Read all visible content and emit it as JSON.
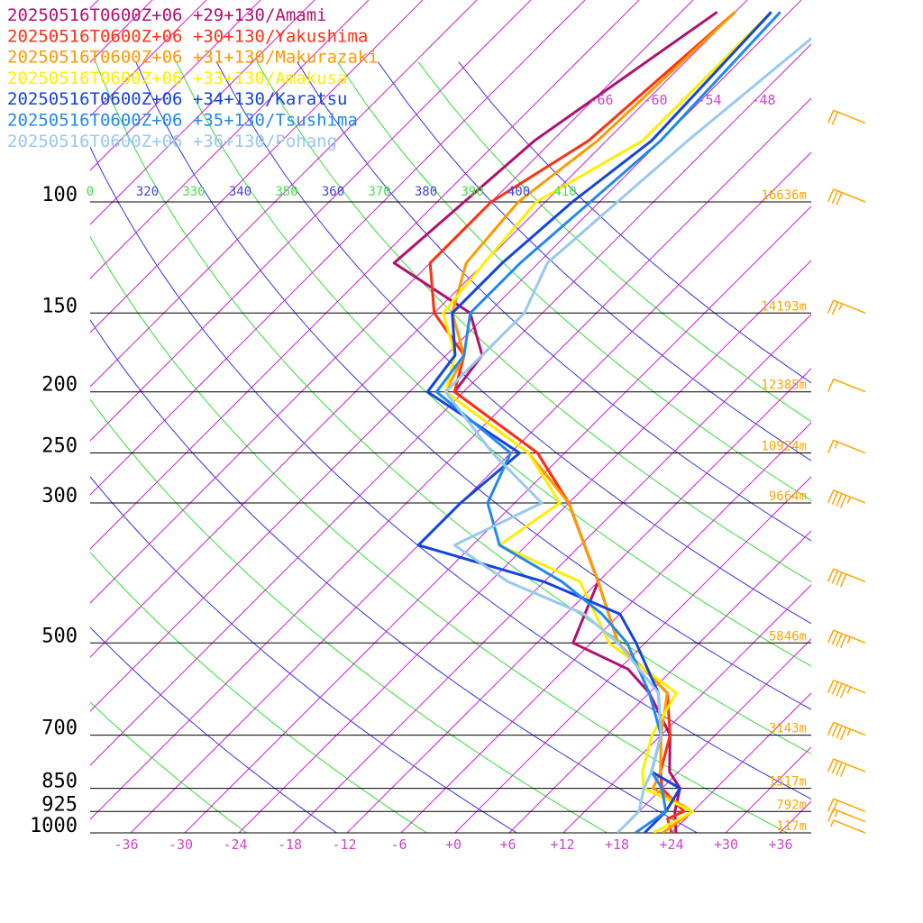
{
  "chart_data": {
    "type": "line",
    "subtype": "skew-T sounding",
    "title": "",
    "xlabel": "",
    "ylabel": "",
    "pressure_levels": [
      100,
      150,
      200,
      250,
      300,
      500,
      700,
      850,
      925,
      1000
    ],
    "geopotential_heights": [
      "16636m",
      "14193m",
      "12385m",
      "10924m",
      "9664m",
      "5846m",
      "3143m",
      "1517m",
      "792m",
      "117m"
    ],
    "temperature_ticks": [
      "-36",
      "-30",
      "-24",
      "-18",
      "-12",
      "-6",
      "+0",
      "+6",
      "+12",
      "+18",
      "+24",
      "+30",
      "+36"
    ],
    "upper_isotherm_labels": [
      "-66",
      "-60",
      "-54",
      "-48"
    ],
    "theta_labels": [
      {
        "text": "0",
        "color": "#44dd44"
      },
      {
        "text": "320",
        "color": "#4444dd"
      },
      {
        "text": "330",
        "color": "#44dd44"
      },
      {
        "text": "340",
        "color": "#4444dd"
      },
      {
        "text": "350",
        "color": "#44dd44"
      },
      {
        "text": "360",
        "color": "#4444dd"
      },
      {
        "text": "370",
        "color": "#44dd44"
      },
      {
        "text": "380",
        "color": "#4444dd"
      },
      {
        "text": "390",
        "color": "#44dd44"
      },
      {
        "text": "400",
        "color": "#4444dd"
      },
      {
        "text": "410",
        "color": "#44dd44"
      }
    ],
    "colors": {
      "isotherm": "#cc22cc",
      "dry_adiabat_blue": "#3333dd",
      "dry_adiabat_green": "#33dd33",
      "isobar": "#000000",
      "wind_barb": "#ffa500"
    },
    "series": [
      {
        "name": "20250516T0600Z+06 +29+130/Amami",
        "color": "#b01070",
        "points": [
          [
            1000,
            24.5
          ],
          [
            925,
            22
          ],
          [
            850,
            20
          ],
          [
            800,
            17
          ],
          [
            700,
            13
          ],
          [
            600,
            6
          ],
          [
            550,
            1
          ],
          [
            500,
            -8
          ],
          [
            400,
            -12
          ],
          [
            300,
            -24
          ],
          [
            250,
            -33
          ],
          [
            200,
            -49
          ],
          [
            175,
            -50
          ],
          [
            150,
            -56
          ],
          [
            125,
            -70
          ],
          [
            100,
            -69
          ],
          [
            80,
            -68
          ],
          [
            50,
            -62
          ]
        ]
      },
      {
        "name": "20250516T0600Z+06 +30+130/Yakushima",
        "color": "#ff3010",
        "points": [
          [
            1000,
            24
          ],
          [
            950,
            22
          ],
          [
            925,
            23
          ],
          [
            850,
            18
          ],
          [
            800,
            16
          ],
          [
            700,
            13
          ],
          [
            600,
            8
          ],
          [
            500,
            -3
          ],
          [
            400,
            -12
          ],
          [
            300,
            -24
          ],
          [
            250,
            -33
          ],
          [
            200,
            -49
          ],
          [
            175,
            -52
          ],
          [
            150,
            -60
          ],
          [
            125,
            -66
          ],
          [
            100,
            -66
          ],
          [
            80,
            -62
          ],
          [
            50,
            -60
          ]
        ]
      },
      {
        "name": "20250516T0600Z+06 +31+130/Makurazaki",
        "color": "#ff9900",
        "points": [
          [
            1000,
            23
          ],
          [
            925,
            24
          ],
          [
            850,
            17
          ],
          [
            800,
            16
          ],
          [
            700,
            12
          ],
          [
            600,
            8
          ],
          [
            500,
            -3
          ],
          [
            400,
            -12
          ],
          [
            300,
            -24
          ],
          [
            250,
            -34
          ],
          [
            200,
            -50
          ],
          [
            175,
            -52
          ],
          [
            150,
            -58
          ],
          [
            125,
            -62
          ],
          [
            100,
            -63
          ],
          [
            80,
            -61
          ],
          [
            50,
            -60
          ]
        ]
      },
      {
        "name": "20250516T0600Z+06 +33+130/Amakusa",
        "color": "#ffee00",
        "points": [
          [
            1000,
            22
          ],
          [
            925,
            24
          ],
          [
            850,
            16
          ],
          [
            800,
            14
          ],
          [
            700,
            11
          ],
          [
            600,
            9
          ],
          [
            500,
            -4
          ],
          [
            400,
            -14
          ],
          [
            350,
            -27
          ],
          [
            300,
            -25
          ],
          [
            250,
            -34
          ],
          [
            200,
            -50
          ],
          [
            175,
            -53
          ],
          [
            150,
            -59
          ],
          [
            125,
            -60
          ],
          [
            100,
            -61
          ],
          [
            80,
            -56
          ],
          [
            50,
            -56
          ]
        ]
      },
      {
        "name": "20250516T0600Z+06 +34+130/Karatsu",
        "color": "#1444dd",
        "points": [
          [
            1000,
            21
          ],
          [
            925,
            21
          ],
          [
            850,
            20
          ],
          [
            800,
            15
          ],
          [
            700,
            12
          ],
          [
            600,
            7
          ],
          [
            500,
            -1
          ],
          [
            450,
            -6
          ],
          [
            400,
            -18
          ],
          [
            350,
            -36
          ],
          [
            300,
            -36
          ],
          [
            250,
            -35
          ],
          [
            200,
            -52
          ],
          [
            175,
            -53
          ],
          [
            150,
            -58
          ],
          [
            125,
            -58
          ],
          [
            100,
            -57
          ],
          [
            80,
            -55
          ],
          [
            50,
            -56
          ]
        ]
      },
      {
        "name": "20250516T0600Z+06 +35+130/Tsushima",
        "color": "#2288ee",
        "points": [
          [
            1000,
            20
          ],
          [
            925,
            21
          ],
          [
            850,
            18
          ],
          [
            800,
            15
          ],
          [
            700,
            12
          ],
          [
            600,
            6
          ],
          [
            500,
            -2
          ],
          [
            450,
            -8
          ],
          [
            400,
            -16
          ],
          [
            350,
            -27
          ],
          [
            300,
            -33
          ],
          [
            250,
            -36
          ],
          [
            200,
            -51
          ],
          [
            175,
            -52
          ],
          [
            150,
            -56
          ],
          [
            125,
            -56
          ],
          [
            100,
            -55
          ],
          [
            80,
            -54
          ],
          [
            50,
            -55
          ]
        ]
      },
      {
        "name": "20250516T0600Z+06 +36+130/Pohang",
        "color": "#99c8f0",
        "points": [
          [
            1000,
            18
          ],
          [
            925,
            18
          ],
          [
            850,
            16
          ],
          [
            800,
            15
          ],
          [
            700,
            12
          ],
          [
            600,
            7
          ],
          [
            500,
            -3
          ],
          [
            450,
            -10
          ],
          [
            400,
            -22
          ],
          [
            350,
            -32
          ],
          [
            300,
            -27
          ],
          [
            250,
            -38
          ],
          [
            200,
            -50
          ],
          [
            175,
            -50
          ],
          [
            150,
            -50
          ],
          [
            125,
            -53
          ],
          [
            100,
            -52
          ],
          [
            80,
            -51
          ],
          [
            50,
            -48
          ]
        ]
      }
    ],
    "wind_barbs": [
      {
        "pressure": 1000,
        "speed_kt": 5
      },
      {
        "pressure": 960,
        "speed_kt": 15
      },
      {
        "pressure": 925,
        "speed_kt": 20
      },
      {
        "pressure": 800,
        "speed_kt": 40
      },
      {
        "pressure": 700,
        "speed_kt": 45
      },
      {
        "pressure": 600,
        "speed_kt": 45
      },
      {
        "pressure": 500,
        "speed_kt": 45
      },
      {
        "pressure": 400,
        "speed_kt": 40
      },
      {
        "pressure": 300,
        "speed_kt": 45
      },
      {
        "pressure": 250,
        "speed_kt": 15
      },
      {
        "pressure": 200,
        "speed_kt": 10
      },
      {
        "pressure": 150,
        "speed_kt": 25
      },
      {
        "pressure": 100,
        "speed_kt": 30
      },
      {
        "pressure": 75,
        "speed_kt": 20
      }
    ]
  }
}
